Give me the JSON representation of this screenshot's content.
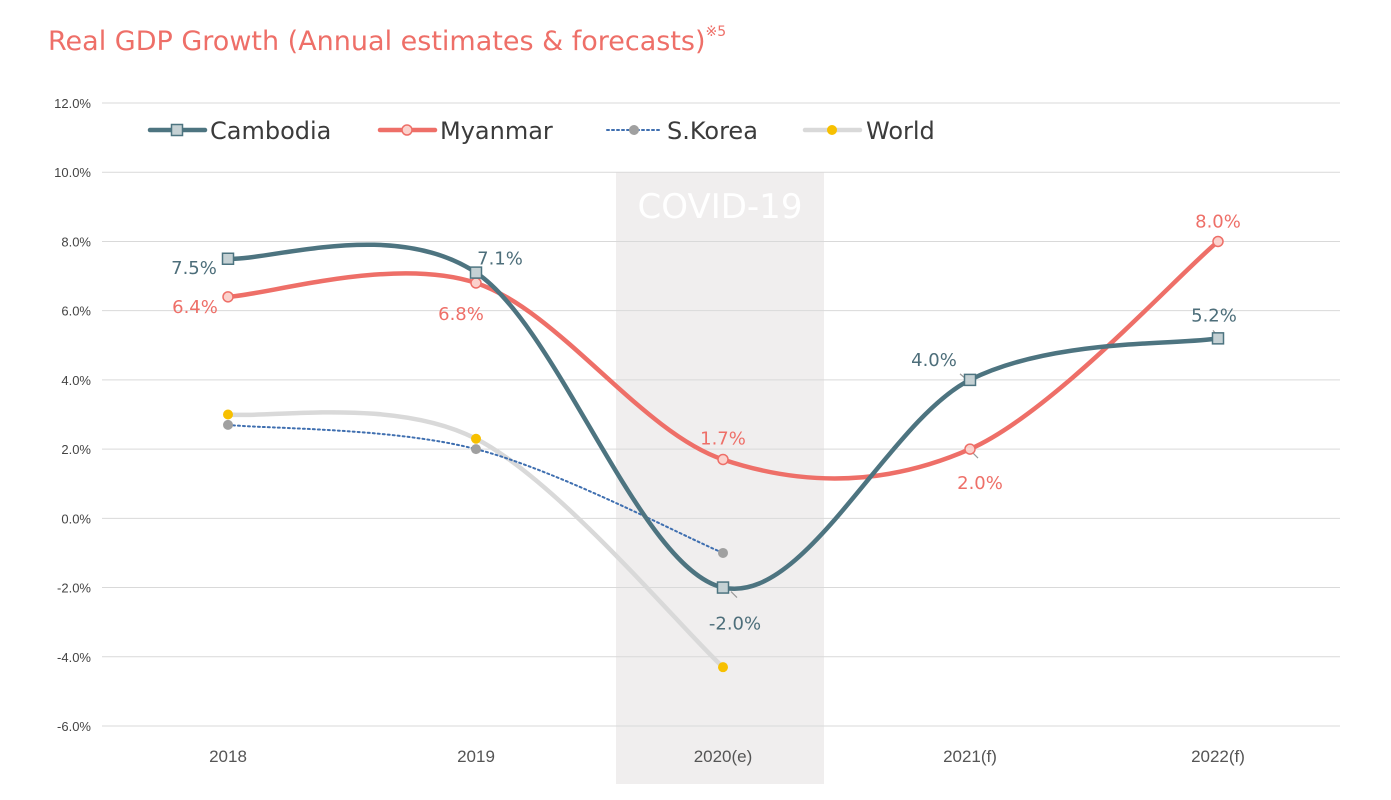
{
  "chart_data": {
    "type": "line",
    "title": "Real GDP Growth (Annual estimates & forecasts)",
    "title_note": "※5",
    "categories": [
      "2018",
      "2019",
      "2020(e)",
      "2021(f)",
      "2022(f)"
    ],
    "ylim": [
      -6,
      12
    ],
    "yticks": [
      "12.0%",
      "10.0%",
      "8.0%",
      "6.0%",
      "4.0%",
      "2.0%",
      "0.0%",
      "-2.0%",
      "-4.0%",
      "-6.0%"
    ],
    "grid": true,
    "legend_position": "top-left",
    "highlight_band": {
      "category": "2020(e)",
      "label": "COVID-19",
      "color": "#f0eeee"
    },
    "series": [
      {
        "name": "Cambodia",
        "values": [
          7.5,
          7.1,
          -2.0,
          4.0,
          5.2
        ],
        "labels": [
          "7.5%",
          "7.1%",
          "-2.0%",
          "4.0%",
          "5.2%"
        ],
        "color": "#4d7480",
        "label_color": "#4d6e7a",
        "marker": "square",
        "style": "solid"
      },
      {
        "name": "Myanmar",
        "values": [
          6.4,
          6.8,
          1.7,
          2.0,
          8.0
        ],
        "labels": [
          "6.4%",
          "6.8%",
          "1.7%",
          "2.0%",
          "8.0%"
        ],
        "color": "#ee6f68",
        "label_color": "#ee6f68",
        "marker": "circle",
        "style": "solid"
      },
      {
        "name": "S.Korea",
        "values": [
          2.7,
          2.0,
          -1.0,
          null,
          null
        ],
        "color": "#3f6fb0",
        "marker_color": "#a0a0a0",
        "marker": "circle",
        "style": "dotted"
      },
      {
        "name": "World",
        "values": [
          3.0,
          2.3,
          -4.3,
          null,
          null
        ],
        "color": "#d9d9d9",
        "marker_color": "#f7c000",
        "marker": "circle",
        "style": "solid"
      }
    ]
  }
}
